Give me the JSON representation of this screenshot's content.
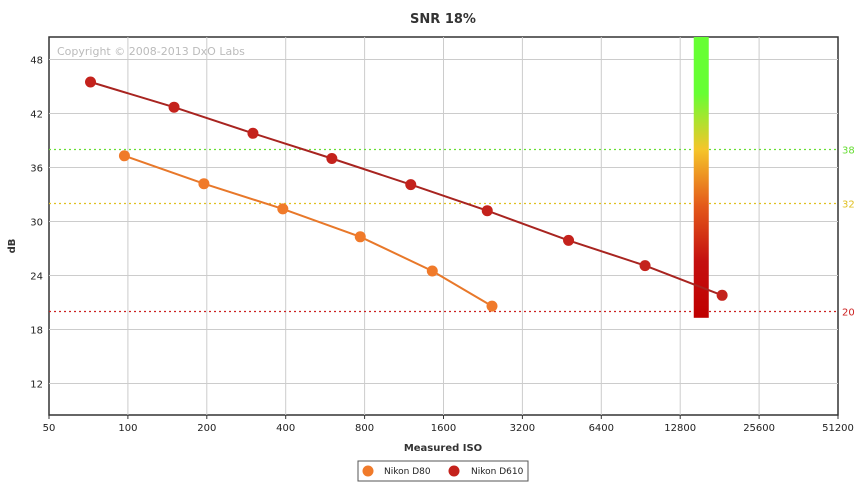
{
  "chart_data": {
    "type": "line",
    "title": "SNR 18%",
    "xlabel": "Measured ISO",
    "ylabel": "dB",
    "copyright": "Copyright © 2008-2013 DxO Labs",
    "x_scale": "log2",
    "x_ticks": [
      "50",
      "100",
      "200",
      "400",
      "800",
      "1600",
      "3200",
      "6400",
      "12800",
      "25600",
      "51200"
    ],
    "y_ticks": [
      "12",
      "18",
      "24",
      "30",
      "36",
      "42",
      "48"
    ],
    "xlim": [
      50,
      51200
    ],
    "ylim": [
      8.5,
      50.5
    ],
    "grid": true,
    "legend_position": "bottom-center",
    "series": [
      {
        "name": "Nikon D80",
        "color": "#f07a2a",
        "line_color": "#e8782a",
        "x": [
          97,
          195,
          390,
          770,
          1450,
          2450
        ],
        "y": [
          37.3,
          34.2,
          31.4,
          28.3,
          24.5,
          20.6
        ]
      },
      {
        "name": "Nikon D610",
        "color": "#c4221c",
        "line_color": "#a82420",
        "x": [
          72,
          150,
          300,
          600,
          1200,
          2350,
          4800,
          9400,
          18500
        ],
        "y": [
          45.5,
          42.7,
          39.8,
          37.0,
          34.1,
          31.2,
          27.9,
          25.1,
          21.8
        ]
      }
    ],
    "reference_lines": [
      {
        "value": 38,
        "label": "38",
        "color": "#66dd33"
      },
      {
        "value": 32,
        "label": "32",
        "color": "#e0c020"
      },
      {
        "value": 20,
        "label": "20",
        "color": "#cc2222"
      }
    ],
    "quality_bar": {
      "x": 15400,
      "y_range": [
        19.3,
        50.5
      ],
      "gradient": [
        "#66ff33",
        "#66ff33",
        "#f5c52a",
        "#e45a1a",
        "#c41010",
        "#c00000"
      ]
    }
  }
}
